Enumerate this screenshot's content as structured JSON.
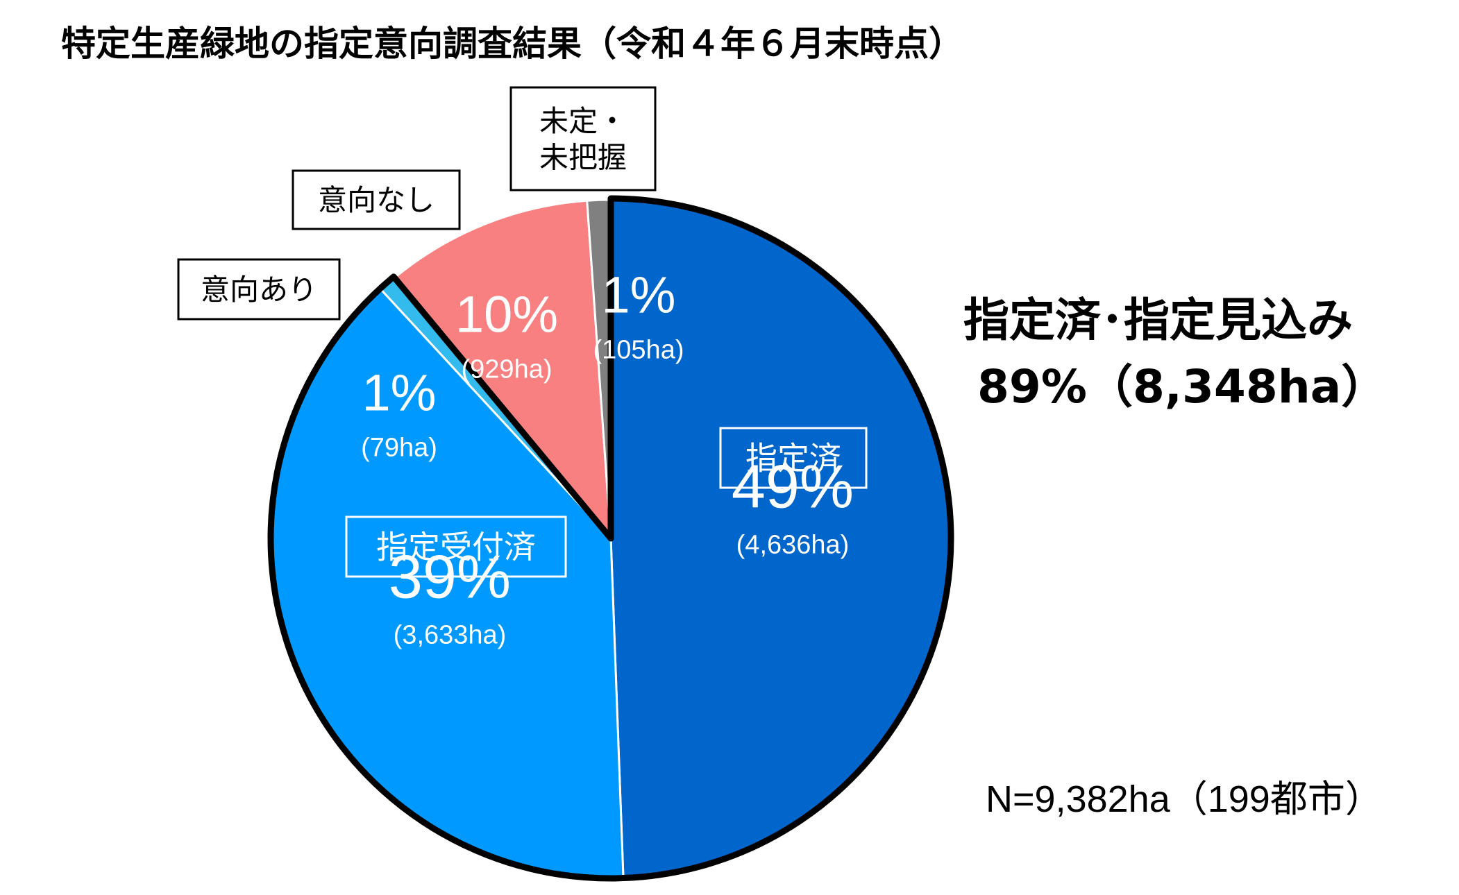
{
  "chart_data": {
    "type": "pie",
    "title": "特定生産緑地の指定意向調査結果（令和４年６月末時点）",
    "total_label": "N=9,382ha（199都市）",
    "summary": {
      "label": "指定済･指定見込み",
      "value_label": "89%（8,348ha）",
      "percent": 89,
      "area_ha": 8348
    },
    "slices": [
      {
        "name": "指定済",
        "percent": 49,
        "area_ha": 4636,
        "percent_label": "49%",
        "area_label": "(4,636ha)",
        "color": "#0066cc",
        "label_box": true
      },
      {
        "name": "指定受付済",
        "percent": 39,
        "area_ha": 3633,
        "percent_label": "39%",
        "area_label": "(3,633ha)",
        "color": "#0099ff",
        "label_box": true
      },
      {
        "name": "意向あり",
        "percent": 1,
        "area_ha": 79,
        "percent_label": "1%",
        "area_label": "(79ha)",
        "color": "#33bbee",
        "label_box": true
      },
      {
        "name": "意向なし",
        "percent": 10,
        "area_ha": 929,
        "percent_label": "10%",
        "area_label": "(929ha)",
        "color": "#f98080",
        "label_box": true
      },
      {
        "name": "未定・\n未把握",
        "percent": 1,
        "area_ha": 105,
        "percent_label": "1%",
        "area_label": "(105ha)",
        "color": "#808080",
        "label_box": true
      }
    ]
  }
}
